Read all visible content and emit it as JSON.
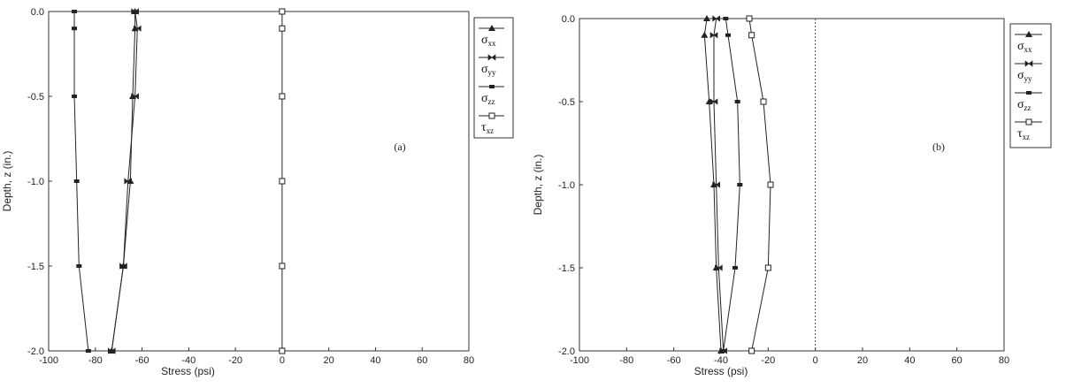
{
  "chart_data": [
    {
      "type": "line",
      "panel_label": "(a)",
      "xlabel": "Stress (psi)",
      "ylabel": "Depth, z (in.)",
      "xlim": [
        -100,
        80
      ],
      "ylim": [
        -2.0,
        0.0
      ],
      "x_ticks": [
        "-100",
        "-80",
        "-60",
        "-40",
        "-20",
        "0",
        "20",
        "40",
        "60",
        "80"
      ],
      "y_ticks": [
        "0.0",
        "-0.5",
        "-1.0",
        "-1.5",
        "-2.0"
      ],
      "grid": false,
      "legend_position": "right",
      "series": [
        {
          "name": "σxx",
          "marker": "triangle",
          "color": "#222222",
          "points": [
            [
              -63,
              0.0
            ],
            [
              -63,
              -0.1
            ],
            [
              -64,
              -0.5
            ],
            [
              -65,
              -1.0
            ],
            [
              -68,
              -1.5
            ],
            [
              -73,
              -2.0
            ]
          ]
        },
        {
          "name": "σyy",
          "marker": "bowtie",
          "color": "#222222",
          "points": [
            [
              -63,
              0.0
            ],
            [
              -62,
              -0.1
            ],
            [
              -63,
              -0.5
            ],
            [
              -66,
              -1.0
            ],
            [
              -68,
              -1.5
            ],
            [
              -73,
              -2.0
            ]
          ]
        },
        {
          "name": "σzz",
          "marker": "bar",
          "color": "#222222",
          "points": [
            [
              -89,
              0.0
            ],
            [
              -89,
              -0.1
            ],
            [
              -89,
              -0.5
            ],
            [
              -88,
              -1.0
            ],
            [
              -87,
              -1.5
            ],
            [
              -83,
              -2.0
            ]
          ]
        },
        {
          "name": "τxz",
          "marker": "square-open",
          "color": "#222222",
          "points": [
            [
              0,
              0.0
            ],
            [
              0,
              -0.1
            ],
            [
              0,
              -0.5
            ],
            [
              0,
              -1.0
            ],
            [
              0,
              -1.5
            ],
            [
              0,
              -2.0
            ]
          ]
        }
      ]
    },
    {
      "type": "line",
      "panel_label": "(b)",
      "xlabel": "Stress (psi)",
      "ylabel": "Depth, z (in.)",
      "xlim": [
        -100,
        80
      ],
      "ylim": [
        -2.0,
        0.0
      ],
      "x_ticks": [
        "-100",
        "-80",
        "-60",
        "-40",
        "-20",
        "0",
        "20",
        "40",
        "60",
        "80"
      ],
      "y_ticks": [
        "0.0",
        "-0.5",
        "-1.0",
        "-1.5",
        "-2.0"
      ],
      "grid": false,
      "zero_reference_line": "dotted",
      "legend_position": "right",
      "series": [
        {
          "name": "σxx",
          "marker": "triangle",
          "color": "#222222",
          "points": [
            [
              -46,
              0.0
            ],
            [
              -47,
              -0.1
            ],
            [
              -45,
              -0.5
            ],
            [
              -43,
              -1.0
            ],
            [
              -42,
              -1.5
            ],
            [
              -40,
              -2.0
            ]
          ]
        },
        {
          "name": "σyy",
          "marker": "bowtie",
          "color": "#222222",
          "points": [
            [
              -42,
              0.0
            ],
            [
              -43,
              -0.1
            ],
            [
              -43,
              -0.5
            ],
            [
              -42,
              -1.0
            ],
            [
              -41,
              -1.5
            ],
            [
              -39,
              -2.0
            ]
          ]
        },
        {
          "name": "σzz",
          "marker": "bar",
          "color": "#222222",
          "points": [
            [
              -38,
              0.0
            ],
            [
              -37,
              -0.1
            ],
            [
              -33,
              -0.5
            ],
            [
              -32,
              -1.0
            ],
            [
              -34,
              -1.5
            ],
            [
              -39,
              -2.0
            ]
          ]
        },
        {
          "name": "τxz",
          "marker": "square-open",
          "color": "#222222",
          "points": [
            [
              -28,
              0.0
            ],
            [
              -27,
              -0.1
            ],
            [
              -22,
              -0.5
            ],
            [
              -19,
              -1.0
            ],
            [
              -20,
              -1.5
            ],
            [
              -27,
              -2.0
            ]
          ]
        }
      ]
    }
  ],
  "legend_entries": [
    {
      "symbol": "σ",
      "sub": "xx"
    },
    {
      "symbol": "σ",
      "sub": "yy"
    },
    {
      "symbol": "σ",
      "sub": "zz"
    },
    {
      "symbol": "τ",
      "sub": "xz"
    }
  ]
}
